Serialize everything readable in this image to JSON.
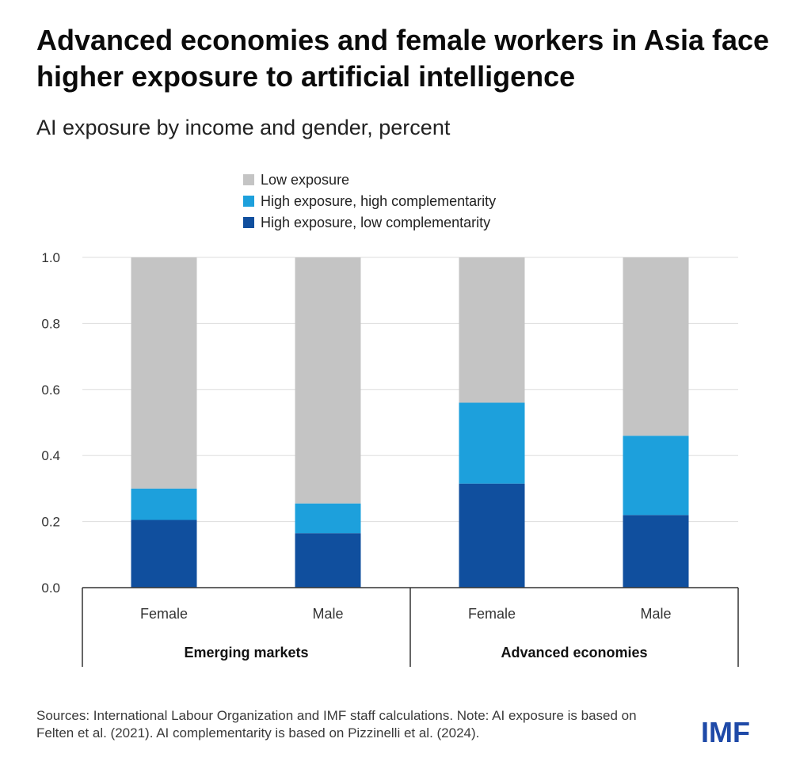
{
  "header": {
    "title": "Advanced economies and female workers in Asia face higher exposure to artificial intelligence",
    "subtitle": "AI exposure by income and gender, percent"
  },
  "chart_data": {
    "type": "bar",
    "stacked": true,
    "title": "Advanced economies and female workers in Asia face higher exposure to artificial intelligence",
    "subtitle": "AI exposure by income and gender, percent",
    "categories": [
      "Female",
      "Male",
      "Female",
      "Male"
    ],
    "groups": [
      {
        "label": "Emerging markets",
        "categories": [
          "Female",
          "Male"
        ]
      },
      {
        "label": "Advanced economies",
        "categories": [
          "Female",
          "Male"
        ]
      }
    ],
    "series": [
      {
        "name": "High exposure, low complementarity",
        "color": "#104f9e",
        "values": [
          0.205,
          0.165,
          0.315,
          0.22
        ]
      },
      {
        "name": "High exposure, high complementarity",
        "color": "#1da0dc",
        "values": [
          0.095,
          0.09,
          0.245,
          0.24
        ]
      },
      {
        "name": "Low exposure",
        "color": "#c4c4c4",
        "values": [
          0.7,
          0.745,
          0.44,
          0.54
        ]
      }
    ],
    "legend_order": [
      "Low exposure",
      "High exposure, high complementarity",
      "High exposure, low complementarity"
    ],
    "legend_colors": [
      "#c4c4c4",
      "#1da0dc",
      "#104f9e"
    ],
    "ylim": [
      0,
      1.0
    ],
    "yticks": [
      "0.0",
      "0.2",
      "0.4",
      "0.6",
      "0.8",
      "1.0"
    ],
    "ytick_values": [
      0.0,
      0.2,
      0.4,
      0.6,
      0.8,
      1.0
    ],
    "xlabel": "",
    "ylabel": "",
    "grid": true,
    "legend_position": "top-center"
  },
  "footer": {
    "source": "Sources: International Labour Organization and IMF staff calculations. Note: AI exposure is based on Felten et al. (2021). AI complementarity is based on Pizzinelli et al. (2024).",
    "logo": "IMF"
  }
}
